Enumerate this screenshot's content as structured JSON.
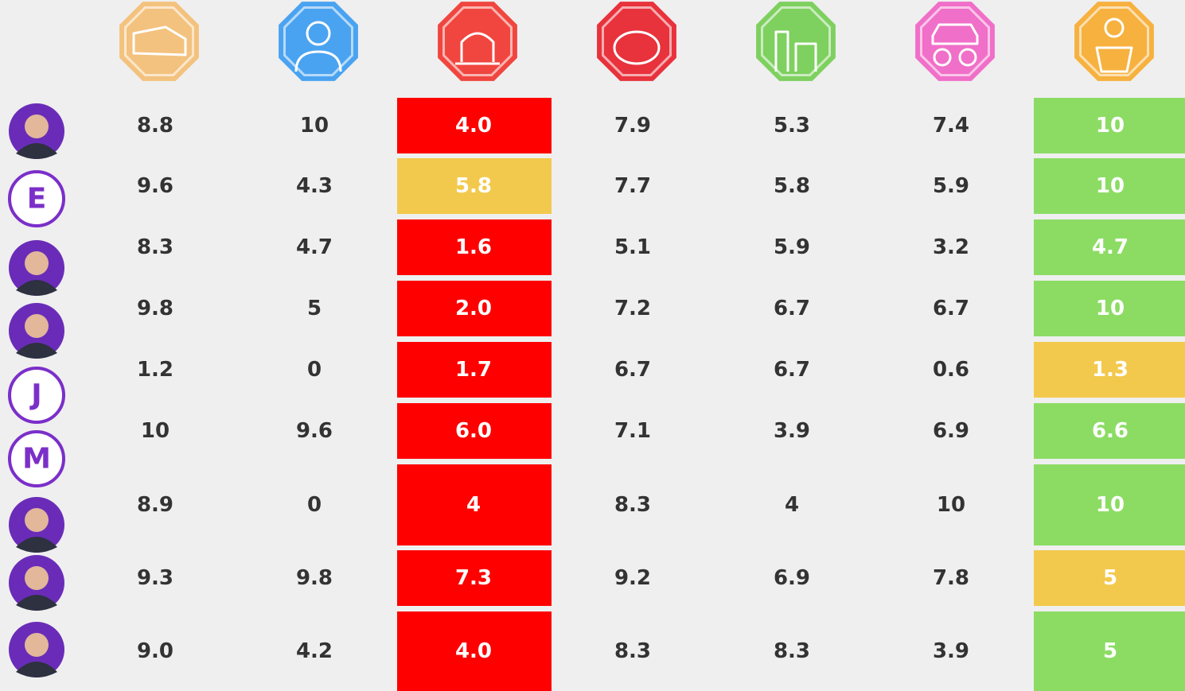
{
  "table": {
    "rows": [
      {
        "values": [
          "8.8",
          "10",
          "4.0",
          "7.9",
          "5.3",
          "7.4",
          "10"
        ],
        "fills": [
          null,
          null,
          "#ff0000",
          null,
          null,
          null,
          "#8cdc64"
        ]
      },
      {
        "avatar": "E",
        "values": [
          "9.6",
          "4.3",
          "5.8",
          "7.7",
          "5.8",
          "5.9",
          "10"
        ],
        "fills": [
          null,
          null,
          "#f2c94c",
          null,
          null,
          null,
          "#8cdc64"
        ]
      },
      {
        "values": [
          "8.3",
          "4.7",
          "1.6",
          "5.1",
          "5.9",
          "3.2",
          "4.7"
        ],
        "fills": [
          null,
          null,
          "#ff0000",
          null,
          null,
          null,
          "#8cdc64"
        ]
      },
      {
        "values": [
          "9.8",
          "5",
          "2.0",
          "7.2",
          "6.7",
          "6.7",
          "10"
        ],
        "fills": [
          null,
          null,
          "#ff0000",
          null,
          null,
          null,
          "#8cdc64"
        ]
      },
      {
        "avatar": "J",
        "values": [
          "1.2",
          "0",
          "1.7",
          "6.7",
          "6.7",
          "0.6",
          "1.3"
        ],
        "fills": [
          null,
          null,
          "#ff0000",
          null,
          null,
          null,
          "#f2c94c"
        ]
      },
      {
        "avatar": "M",
        "values": [
          "10",
          "9.6",
          "6.0",
          "7.1",
          "3.9",
          "6.9",
          "6.6"
        ],
        "fills": [
          null,
          null,
          "#ff0000",
          null,
          null,
          null,
          "#8cdc64"
        ]
      },
      {
        "values": [
          "8.9",
          "0",
          "4",
          "8.3",
          "4",
          "10",
          "10"
        ],
        "fills": [
          null,
          null,
          "#ff0000",
          null,
          null,
          null,
          "#8cdc64"
        ]
      },
      {
        "values": [
          "9.3",
          "9.8",
          "7.3",
          "9.2",
          "6.9",
          "7.8",
          "5"
        ],
        "fills": [
          null,
          null,
          "#ff0000",
          null,
          null,
          null,
          "#f2c94c"
        ]
      },
      {
        "values": [
          "9.0",
          "4.2",
          "4.0",
          "8.3",
          "8.3",
          "3.9",
          "5"
        ],
        "fills": [
          null,
          null,
          "#ff0000",
          null,
          null,
          null,
          "#8cdc64"
        ]
      }
    ]
  }
}
